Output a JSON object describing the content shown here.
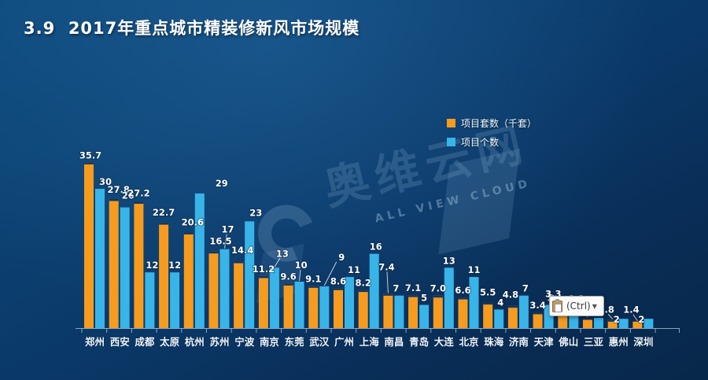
{
  "title": "3.9  2017年重点城市精装修新风市场规模",
  "legend": [
    {
      "label": "项目套数（千套）",
      "color": "#F79B1E"
    },
    {
      "label": "项目个数",
      "color": "#38B4E8"
    }
  ],
  "watermark": {
    "cjk": "奥维云网",
    "latin": "ALL VIEW CLOUD"
  },
  "tooltip": {
    "label": "(Ctrl)",
    "arrow": "▼"
  },
  "chart_data": {
    "type": "bar",
    "categories": [
      "郑州",
      "西安",
      "成都",
      "太原",
      "杭州",
      "苏州",
      "宁波",
      "南京",
      "东莞",
      "武汉",
      "广州",
      "上海",
      "南昌",
      "青岛",
      "大连",
      "北京",
      "珠海",
      "济南",
      "天津",
      "佛山",
      "三亚",
      "惠州",
      "深圳"
    ],
    "series": [
      {
        "name": "项目套数（千套）",
        "color": "#F79B1E",
        "values": [
          35.7,
          27.8,
          27.2,
          22.7,
          20.6,
          16.5,
          14.4,
          11.2,
          9.6,
          9.1,
          8.6,
          8.2,
          7.4,
          7.1,
          7.0,
          6.6,
          5.5,
          4.8,
          3.4,
          3.3,
          2.2,
          1.8,
          1.4
        ],
        "labels": [
          "35.7",
          "27.8",
          "27.2",
          "22.7",
          "20.6",
          "16.5",
          "14.4",
          "11.2",
          "9.6",
          "9.1",
          "8.6",
          "8.2",
          "7.4",
          "7.1",
          "7.0",
          "6.6",
          "5.5",
          "4.8",
          "3.4",
          "3.3",
          "2.2",
          "1.8",
          "1.4"
        ]
      },
      {
        "name": "项目个数",
        "color": "#38B4E8",
        "values": [
          30,
          26,
          12,
          12,
          29,
          17,
          23,
          13,
          10,
          9,
          11,
          16,
          7,
          5,
          13,
          11,
          4,
          7,
          5,
          3,
          2.2,
          2,
          2
        ],
        "labels": [
          "30",
          "26",
          "12",
          "12",
          "29",
          "17",
          "23",
          "13",
          "10",
          "9",
          "11",
          "16",
          "7",
          "5",
          "13",
          "11",
          "4",
          "7",
          "5",
          "",
          "",
          "2",
          "2"
        ]
      }
    ],
    "title": "2017年重点城市精装修新风市场规模",
    "xlabel": "",
    "ylabel": "",
    "ylim": [
      0,
      38
    ],
    "grid": false,
    "legend_position": "top-right"
  }
}
